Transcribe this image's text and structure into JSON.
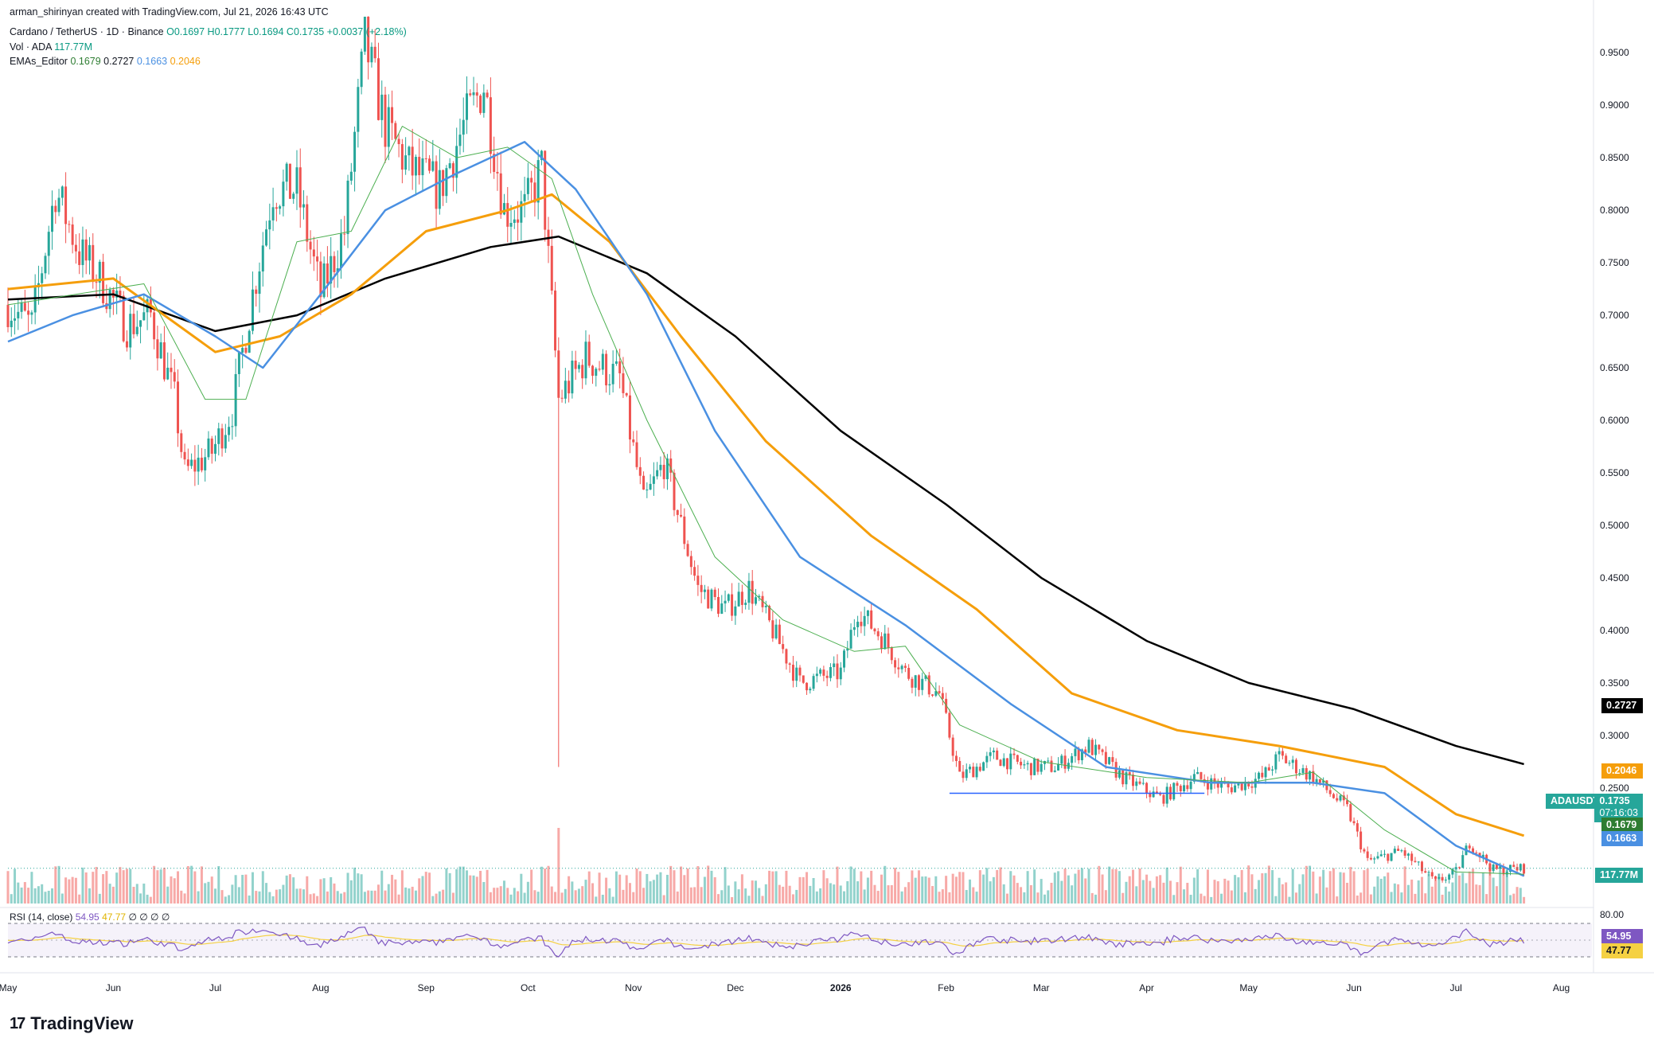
{
  "credit": "arman_shirinyan created with TradingView.com, Jul 21, 2026 16:43 UTC",
  "legend": {
    "symbol": "Cardano / TetherUS · 1D · Binance",
    "ohlc": "O0.1697 H0.1777 L0.1694 C0.1735 +0.0037 (+2.18%)",
    "vol_label": "Vol · ADA",
    "vol_value": "117.77M",
    "ema_label": "EMAs_Editor",
    "ema20": "0.1679",
    "ema200": "0.2727",
    "ema50": "0.1663",
    "ema100": "0.2046",
    "rsi_label": "RSI (14, close)",
    "rsi_value": "54.95",
    "rsi_ma": "47.77",
    "rsi_extra": "∅ ∅ ∅ ∅"
  },
  "brand": "TradingView",
  "price_tags": {
    "ema200": "0.2727",
    "ema100": "0.2046",
    "symbol": "ADAUSDT",
    "last": "0.1735",
    "countdown": "07:16:03",
    "ema20": "0.1679",
    "ema50": "0.1663",
    "volume": "117.77M",
    "rsi": "54.95",
    "rsi_ma": "47.77"
  },
  "colors": {
    "up": "#26a69a",
    "down": "#ef5350",
    "ema20": "#4caf50",
    "ema50": "#4a90e2",
    "ema100": "#f59e0b",
    "ema200": "#000000",
    "rsi": "#7e57c2",
    "rsi_ma": "#f5d142",
    "support": "#2962ff"
  },
  "chart_data": {
    "type": "candlestick",
    "title": "Cardano / TetherUS · 1D · Binance",
    "x_ticks": [
      "May",
      "Jun",
      "Jul",
      "Aug",
      "Sep",
      "Oct",
      "Nov",
      "Dec",
      "2026",
      "Feb",
      "Mar",
      "Apr",
      "May",
      "Jun",
      "Jul",
      "Aug"
    ],
    "y_ticks": [
      "0.9500",
      "0.9000",
      "0.8500",
      "0.8000",
      "0.7500",
      "0.7000",
      "0.6500",
      "0.6000",
      "0.5500",
      "0.5000",
      "0.4500",
      "0.4000",
      "0.3500",
      "0.3000",
      "0.2500"
    ],
    "ylim": [
      0.14,
      0.985
    ],
    "rsi_ticks": [
      "80.00"
    ],
    "close_path": [
      [
        "2025-05-01",
        0.71
      ],
      [
        "2025-05-08",
        0.69
      ],
      [
        "2025-05-15",
        0.82
      ],
      [
        "2025-05-22",
        0.76
      ],
      [
        "2025-05-29",
        0.73
      ],
      [
        "2025-06-05",
        0.69
      ],
      [
        "2025-06-12",
        0.7
      ],
      [
        "2025-06-19",
        0.62
      ],
      [
        "2025-06-22",
        0.55
      ],
      [
        "2025-06-30",
        0.57
      ],
      [
        "2025-07-06",
        0.61
      ],
      [
        "2025-07-12",
        0.72
      ],
      [
        "2025-07-18",
        0.82
      ],
      [
        "2025-07-25",
        0.82
      ],
      [
        "2025-08-01",
        0.72
      ],
      [
        "2025-08-08",
        0.78
      ],
      [
        "2025-08-14",
        0.96
      ],
      [
        "2025-08-20",
        0.88
      ],
      [
        "2025-08-27",
        0.84
      ],
      [
        "2025-09-05",
        0.82
      ],
      [
        "2025-09-12",
        0.88
      ],
      [
        "2025-09-18",
        0.92
      ],
      [
        "2025-09-24",
        0.8
      ],
      [
        "2025-09-30",
        0.8
      ],
      [
        "2025-10-05",
        0.84
      ],
      [
        "2025-10-10",
        0.62
      ],
      [
        "2025-10-18",
        0.66
      ],
      [
        "2025-10-28",
        0.64
      ],
      [
        "2025-11-04",
        0.52
      ],
      [
        "2025-11-10",
        0.56
      ],
      [
        "2025-11-20",
        0.44
      ],
      [
        "2025-11-28",
        0.42
      ],
      [
        "2025-12-05",
        0.44
      ],
      [
        "2025-12-12",
        0.4
      ],
      [
        "2025-12-20",
        0.35
      ],
      [
        "2026-01-01",
        0.36
      ],
      [
        "2026-01-06",
        0.42
      ],
      [
        "2026-01-14",
        0.39
      ],
      [
        "2026-01-20",
        0.36
      ],
      [
        "2026-01-30",
        0.34
      ],
      [
        "2026-02-05",
        0.26
      ],
      [
        "2026-02-15",
        0.28
      ],
      [
        "2026-02-25",
        0.27
      ],
      [
        "2026-03-05",
        0.27
      ],
      [
        "2026-03-15",
        0.29
      ],
      [
        "2026-03-25",
        0.26
      ],
      [
        "2026-04-05",
        0.24
      ],
      [
        "2026-04-15",
        0.26
      ],
      [
        "2026-04-25",
        0.25
      ],
      [
        "2026-05-05",
        0.26
      ],
      [
        "2026-05-10",
        0.28
      ],
      [
        "2026-05-20",
        0.26
      ],
      [
        "2026-05-30",
        0.23
      ],
      [
        "2026-06-05",
        0.18
      ],
      [
        "2026-06-15",
        0.19
      ],
      [
        "2026-06-25",
        0.16
      ],
      [
        "2026-07-01",
        0.17
      ],
      [
        "2026-07-05",
        0.198
      ],
      [
        "2026-07-12",
        0.172
      ],
      [
        "2026-07-21",
        0.1735
      ]
    ],
    "ema20": [
      [
        "2025-05-01",
        0.71
      ],
      [
        "2025-06-10",
        0.73
      ],
      [
        "2025-06-28",
        0.62
      ],
      [
        "2025-07-10",
        0.62
      ],
      [
        "2025-07-25",
        0.77
      ],
      [
        "2025-08-10",
        0.78
      ],
      [
        "2025-08-25",
        0.88
      ],
      [
        "2025-09-10",
        0.85
      ],
      [
        "2025-09-25",
        0.86
      ],
      [
        "2025-10-08",
        0.83
      ],
      [
        "2025-10-20",
        0.72
      ],
      [
        "2025-11-05",
        0.6
      ],
      [
        "2025-11-25",
        0.47
      ],
      [
        "2025-12-15",
        0.41
      ],
      [
        "2026-01-05",
        0.38
      ],
      [
        "2026-01-20",
        0.385
      ],
      [
        "2026-02-05",
        0.31
      ],
      [
        "2026-03-01",
        0.275
      ],
      [
        "2026-04-01",
        0.26
      ],
      [
        "2026-05-01",
        0.255
      ],
      [
        "2026-05-20",
        0.265
      ],
      [
        "2026-06-10",
        0.21
      ],
      [
        "2026-07-01",
        0.17
      ],
      [
        "2026-07-21",
        0.1679
      ]
    ],
    "ema50": [
      [
        "2025-05-01",
        0.675
      ],
      [
        "2025-05-20",
        0.7
      ],
      [
        "2025-06-10",
        0.72
      ],
      [
        "2025-07-01",
        0.68
      ],
      [
        "2025-07-15",
        0.65
      ],
      [
        "2025-08-01",
        0.72
      ],
      [
        "2025-08-20",
        0.8
      ],
      [
        "2025-09-10",
        0.835
      ],
      [
        "2025-09-30",
        0.865
      ],
      [
        "2025-10-15",
        0.82
      ],
      [
        "2025-11-05",
        0.72
      ],
      [
        "2025-11-25",
        0.59
      ],
      [
        "2025-12-20",
        0.47
      ],
      [
        "2026-01-20",
        0.405
      ],
      [
        "2026-02-20",
        0.33
      ],
      [
        "2026-03-20",
        0.27
      ],
      [
        "2026-04-20",
        0.255
      ],
      [
        "2026-05-20",
        0.255
      ],
      [
        "2026-06-10",
        0.245
      ],
      [
        "2026-07-01",
        0.195
      ],
      [
        "2026-07-21",
        0.1663
      ]
    ],
    "ema100": [
      [
        "2025-05-01",
        0.725
      ],
      [
        "2025-06-01",
        0.735
      ],
      [
        "2025-07-01",
        0.665
      ],
      [
        "2025-07-20",
        0.68
      ],
      [
        "2025-08-10",
        0.72
      ],
      [
        "2025-09-01",
        0.78
      ],
      [
        "2025-09-25",
        0.8
      ],
      [
        "2025-10-08",
        0.815
      ],
      [
        "2025-10-25",
        0.77
      ],
      [
        "2025-11-15",
        0.68
      ],
      [
        "2025-12-10",
        0.58
      ],
      [
        "2026-01-10",
        0.49
      ],
      [
        "2026-02-10",
        0.42
      ],
      [
        "2026-03-10",
        0.34
      ],
      [
        "2026-04-10",
        0.305
      ],
      [
        "2026-05-10",
        0.29
      ],
      [
        "2026-06-10",
        0.27
      ],
      [
        "2026-07-01",
        0.225
      ],
      [
        "2026-07-21",
        0.2046
      ]
    ],
    "ema200": [
      [
        "2025-05-01",
        0.715
      ],
      [
        "2025-06-01",
        0.72
      ],
      [
        "2025-07-01",
        0.685
      ],
      [
        "2025-07-25",
        0.7
      ],
      [
        "2025-08-20",
        0.735
      ],
      [
        "2025-09-20",
        0.765
      ],
      [
        "2025-10-10",
        0.775
      ],
      [
        "2025-11-05",
        0.74
      ],
      [
        "2025-12-01",
        0.68
      ],
      [
        "2026-01-01",
        0.59
      ],
      [
        "2026-02-01",
        0.52
      ],
      [
        "2026-03-01",
        0.45
      ],
      [
        "2026-04-01",
        0.39
      ],
      [
        "2026-05-01",
        0.35
      ],
      [
        "2026-06-01",
        0.325
      ],
      [
        "2026-07-01",
        0.29
      ],
      [
        "2026-07-21",
        0.2727
      ]
    ],
    "support_line": {
      "from": "2026-02-02",
      "to": "2026-04-18",
      "value": 0.245
    },
    "last_price": 0.1735,
    "volume_last": "117.77M",
    "rsi_last": 54.95,
    "rsi_ma_last": 47.77
  }
}
